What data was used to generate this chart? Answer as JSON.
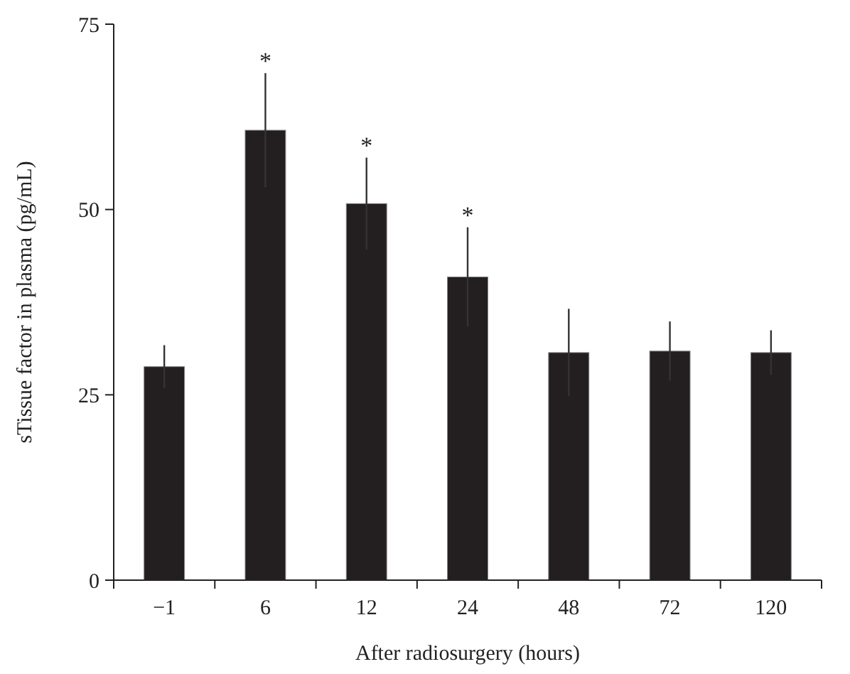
{
  "chart_data": {
    "type": "bar",
    "xlabel": "After radiosurgery (hours)",
    "ylabel": "sTissue factor in plasma (pg/mL)",
    "categories": [
      "−1",
      "6",
      "12",
      "24",
      "48",
      "72",
      "120"
    ],
    "values": [
      28.8,
      60.7,
      50.8,
      40.9,
      30.7,
      30.9,
      30.7
    ],
    "errors": [
      2.9,
      7.7,
      6.2,
      6.7,
      5.9,
      4.0,
      3.0
    ],
    "color": "#231f20",
    "ylim": [
      0,
      75
    ],
    "yticks": [
      0,
      25,
      50,
      75
    ],
    "annotations": [
      "*",
      "*",
      "*"
    ]
  }
}
